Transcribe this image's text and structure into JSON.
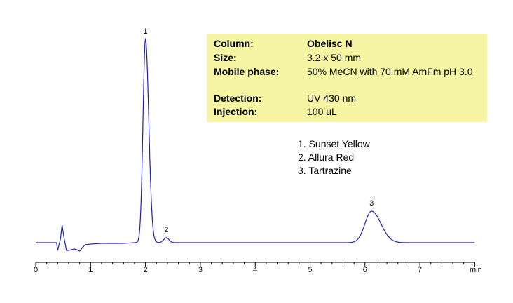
{
  "info": {
    "column_label": "Column:",
    "column_value": "Obelisc N",
    "size_label": "Size:",
    "size_value": "3.2 x 50 mm",
    "mobile_label": "Mobile phase:",
    "mobile_value": "50% MeCN with 70 mM AmFm pH 3.0",
    "detection_label": "Detection:",
    "detection_value": "UV 430 nm",
    "injection_label": "Injection:",
    "injection_value": "100 uL"
  },
  "legend": {
    "item1": "1. Sunset Yellow",
    "item2": "2. Allura Red",
    "item3": "3. Tartrazine"
  },
  "chart_data": {
    "type": "line",
    "xlabel": "min",
    "ylabel": "",
    "xlim": [
      0,
      8
    ],
    "x_ticks": [
      0,
      1,
      2,
      3,
      4,
      5,
      6,
      7
    ],
    "tick_labels": [
      "0",
      "1",
      "2",
      "3",
      "4",
      "5",
      "6",
      "7"
    ],
    "line_color": "#2020c0",
    "baseline": 0,
    "ylim": [
      -12,
      292
    ],
    "segments": [
      {
        "x": [
          0.0,
          0.38,
          0.4
        ],
        "y": [
          0,
          0,
          -11
        ]
      },
      {
        "x": [
          0.4,
          0.45,
          0.48,
          0.52,
          0.56
        ],
        "y": [
          -11,
          5,
          25,
          5,
          -11
        ]
      },
      {
        "x": [
          0.56,
          0.6,
          0.65,
          0.7,
          0.75,
          0.8,
          0.85,
          0.9,
          1.0,
          1.2,
          1.4,
          1.6,
          1.8
        ],
        "y": [
          -11,
          -11,
          -10,
          -9,
          -10,
          -12,
          -7,
          -3,
          -2,
          -1,
          -1,
          -1,
          0
        ]
      }
    ],
    "peaks": [
      {
        "label": "1",
        "rt": 2.0,
        "height": 290,
        "width_left": 0.045,
        "width_right": 0.06
      },
      {
        "label": "2",
        "rt": 2.38,
        "height": 7,
        "width_left": 0.05,
        "width_right": 0.05
      },
      {
        "label": "3",
        "rt": 6.12,
        "height": 45,
        "width_left": 0.12,
        "width_right": 0.17
      }
    ],
    "x_end": 8.0
  }
}
